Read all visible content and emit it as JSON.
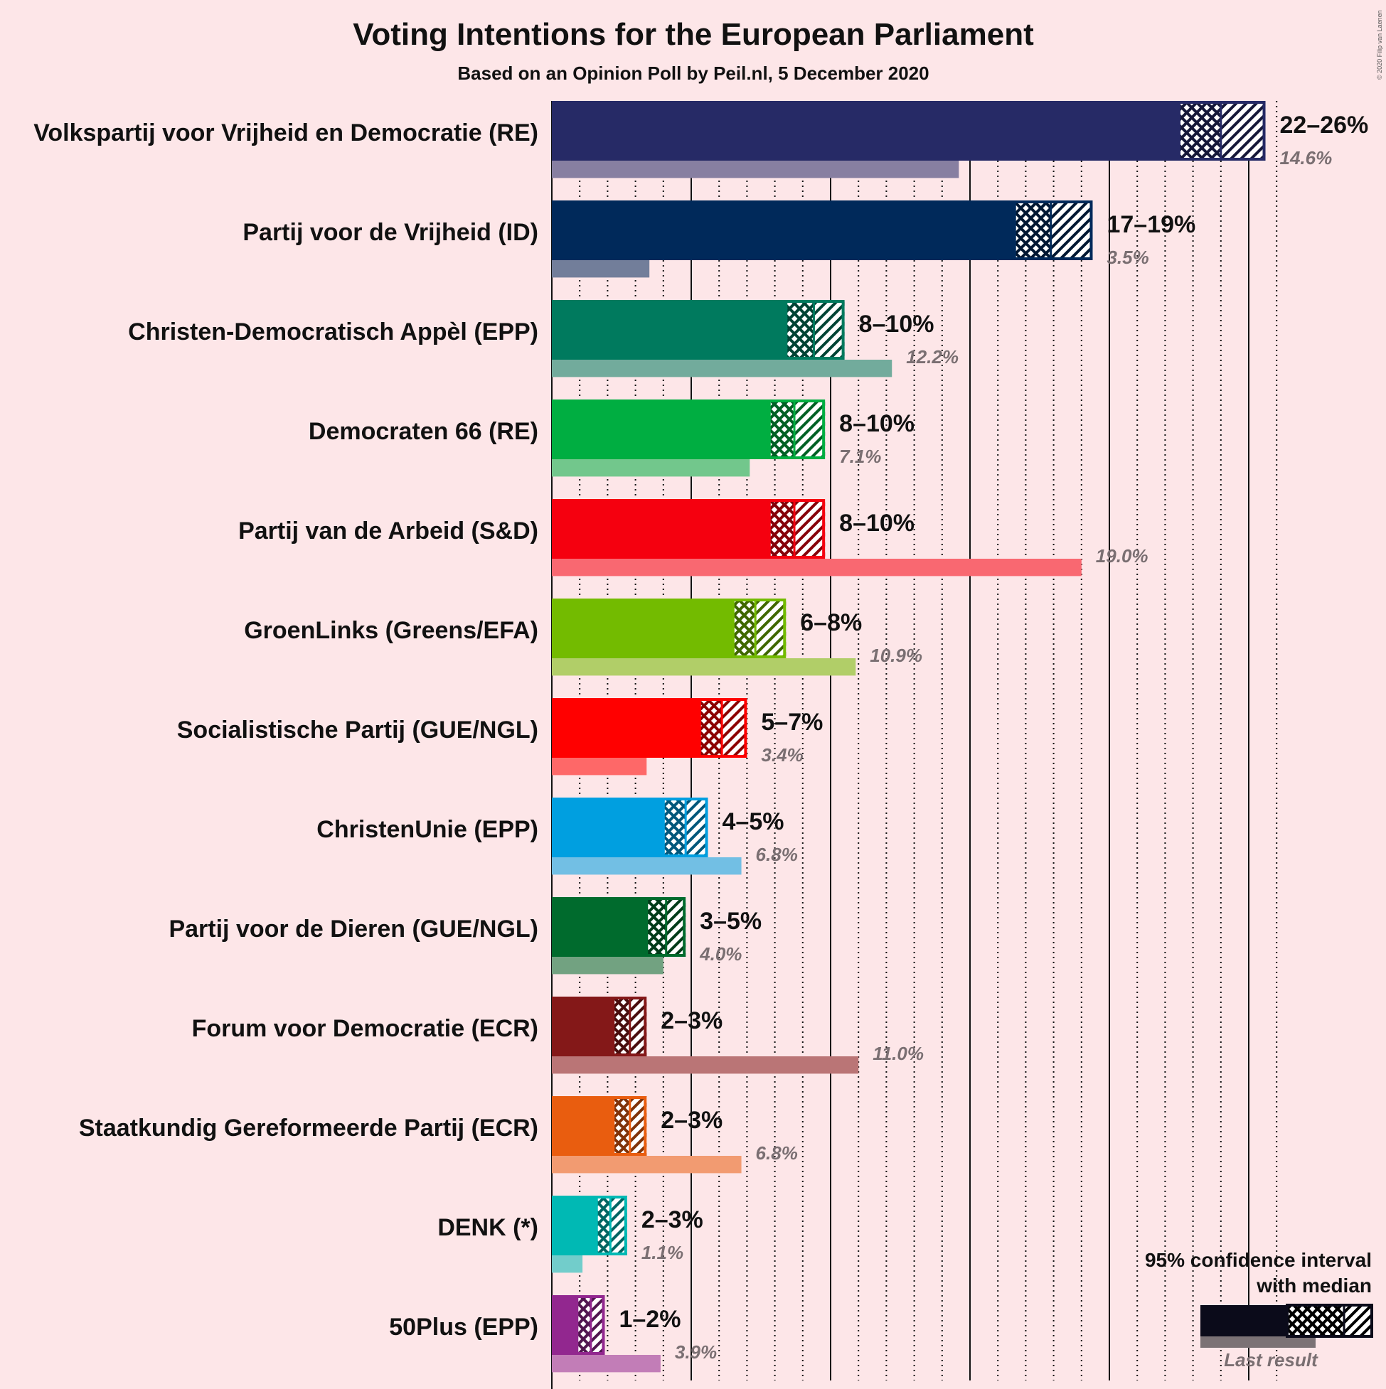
{
  "chart_data": {
    "type": "bar",
    "title": "Voting Intentions for the European Parliament",
    "subtitle": "Based on an Opinion Poll by Peil.nl, 5 December 2020",
    "copyright": "© 2020 Filip van Laenen",
    "xlim": [
      0,
      26
    ],
    "unit": "%",
    "parties": [
      {
        "name": "Volkspartij voor Vrijheid en Democratie (RE)",
        "color": "#262a66",
        "ci_low": 22.5,
        "median": 24.0,
        "ci_high": 25.6,
        "range_label": "22–26%",
        "last_result": 14.6,
        "last_label": "14.6%"
      },
      {
        "name": "Partij voor de Vrijheid (ID)",
        "color": "#00295a",
        "ci_low": 16.6,
        "median": 17.9,
        "ci_high": 19.4,
        "range_label": "17–19%",
        "last_result": 3.5,
        "last_label": "3.5%"
      },
      {
        "name": "Christen-Democratisch Appèl (EPP)",
        "color": "#007a5e",
        "ci_low": 8.4,
        "median": 9.4,
        "ci_high": 10.5,
        "range_label": "8–10%",
        "last_result": 12.2,
        "last_label": "12.2%"
      },
      {
        "name": "Democraten 66 (RE)",
        "color": "#00ae41",
        "ci_low": 7.8,
        "median": 8.7,
        "ci_high": 9.8,
        "range_label": "8–10%",
        "last_result": 7.1,
        "last_label": "7.1%"
      },
      {
        "name": "Partij van de Arbeid (S&D)",
        "color": "#f5000f",
        "ci_low": 7.8,
        "median": 8.7,
        "ci_high": 9.8,
        "range_label": "8–10%",
        "last_result": 19.0,
        "last_label": "19.0%"
      },
      {
        "name": "GroenLinks (Greens/EFA)",
        "color": "#73bb00",
        "ci_low": 6.5,
        "median": 7.3,
        "ci_high": 8.4,
        "range_label": "6–8%",
        "last_result": 10.9,
        "last_label": "10.9%"
      },
      {
        "name": "Socialistische Partij (GUE/NGL)",
        "color": "#ff0000",
        "ci_low": 5.3,
        "median": 6.1,
        "ci_high": 7.0,
        "range_label": "5–7%",
        "last_result": 3.4,
        "last_label": "3.4%"
      },
      {
        "name": "ChristenUnie (EPP)",
        "color": "#009fe0",
        "ci_low": 4.0,
        "median": 4.8,
        "ci_high": 5.6,
        "range_label": "4–5%",
        "last_result": 6.8,
        "last_label": "6.8%"
      },
      {
        "name": "Partij voor de Dieren (GUE/NGL)",
        "color": "#006b2d",
        "ci_low": 3.4,
        "median": 4.1,
        "ci_high": 4.8,
        "range_label": "3–5%",
        "last_result": 4.0,
        "last_label": "4.0%"
      },
      {
        "name": "Forum voor Democratie (ECR)",
        "color": "#841818",
        "ci_low": 2.2,
        "median": 2.8,
        "ci_high": 3.4,
        "range_label": "2–3%",
        "last_result": 11.0,
        "last_label": "11.0%"
      },
      {
        "name": "Staatkundig Gereformeerde Partij (ECR)",
        "color": "#e95d0f",
        "ci_low": 2.2,
        "median": 2.8,
        "ci_high": 3.4,
        "range_label": "2–3%",
        "last_result": 6.8,
        "last_label": "6.8%"
      },
      {
        "name": "DENK (*)",
        "color": "#00b9b4",
        "ci_low": 1.6,
        "median": 2.1,
        "ci_high": 2.7,
        "range_label": "2–3%",
        "last_result": 1.1,
        "last_label": "1.1%"
      },
      {
        "name": "50Plus (EPP)",
        "color": "#92278f",
        "ci_low": 0.9,
        "median": 1.4,
        "ci_high": 1.9,
        "range_label": "1–2%",
        "last_result": 3.9,
        "last_label": "3.9%"
      }
    ],
    "legend": {
      "title_line1": "95% confidence interval",
      "title_line2": "with median",
      "last_result": "Last result",
      "color": "#0b0b1a"
    }
  }
}
